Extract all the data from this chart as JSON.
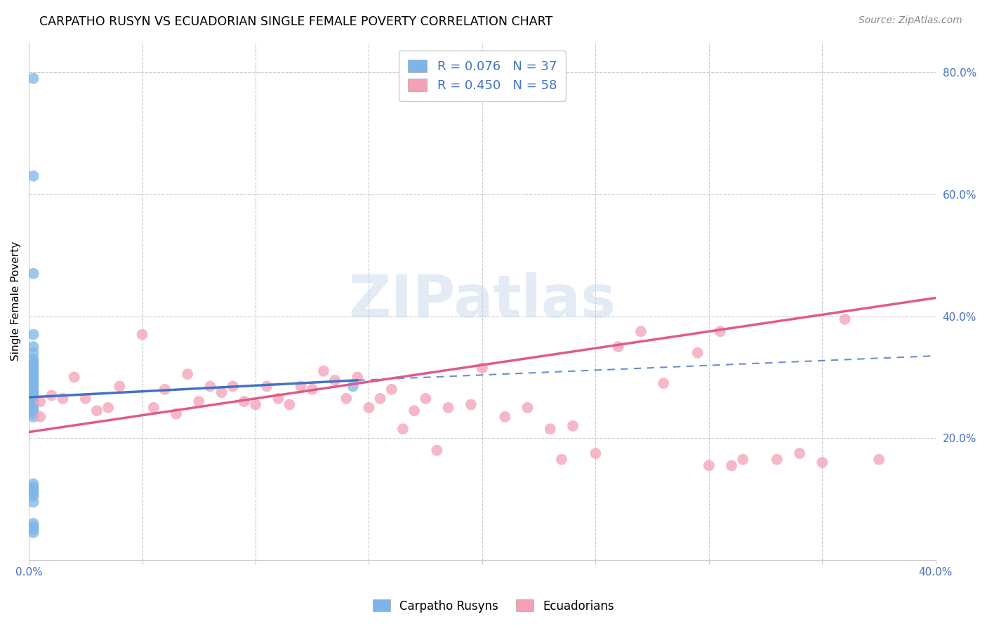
{
  "title": "CARPATHO RUSYN VS ECUADORIAN SINGLE FEMALE POVERTY CORRELATION CHART",
  "source": "Source: ZipAtlas.com",
  "ylabel": "Single Female Poverty",
  "legend_label1": "Carpatho Rusyns",
  "legend_label2": "Ecuadorians",
  "legend_text1": "R = 0.076   N = 37",
  "legend_text2": "R = 0.450   N = 58",
  "xlim": [
    0.0,
    0.4
  ],
  "ylim": [
    0.0,
    0.85
  ],
  "xtick_positions": [
    0.0,
    0.05,
    0.1,
    0.15,
    0.2,
    0.25,
    0.3,
    0.35,
    0.4
  ],
  "xtick_labels": [
    "0.0%",
    "",
    "",
    "",
    "",
    "",
    "",
    "",
    "40.0%"
  ],
  "ytick_positions": [
    0.0,
    0.2,
    0.4,
    0.6,
    0.8
  ],
  "ytick_labels": [
    "",
    "20.0%",
    "40.0%",
    "60.0%",
    "80.0%"
  ],
  "color_blue": "#7eb5e8",
  "color_pink": "#f4a0b5",
  "line_blue": "#4472c4",
  "line_pink": "#e05a8a",
  "tick_color": "#4472c4",
  "background": "#ffffff",
  "grid_color": "#cccccc",
  "blue_x": [
    0.002,
    0.002,
    0.002,
    0.002,
    0.002,
    0.002,
    0.002,
    0.002,
    0.002,
    0.002,
    0.002,
    0.002,
    0.002,
    0.002,
    0.002,
    0.002,
    0.002,
    0.002,
    0.002,
    0.002,
    0.002,
    0.002,
    0.002,
    0.002,
    0.002,
    0.002,
    0.002,
    0.002,
    0.002,
    0.002,
    0.002,
    0.002,
    0.002,
    0.002,
    0.002,
    0.002,
    0.143
  ],
  "blue_y": [
    0.79,
    0.63,
    0.47,
    0.37,
    0.35,
    0.34,
    0.33,
    0.325,
    0.32,
    0.315,
    0.31,
    0.305,
    0.3,
    0.295,
    0.29,
    0.285,
    0.28,
    0.275,
    0.27,
    0.265,
    0.26,
    0.255,
    0.25,
    0.245,
    0.24,
    0.235,
    0.125,
    0.12,
    0.115,
    0.11,
    0.105,
    0.095,
    0.06,
    0.055,
    0.05,
    0.045,
    0.285
  ],
  "pink_x": [
    0.005,
    0.01,
    0.02,
    0.03,
    0.04,
    0.055,
    0.065,
    0.075,
    0.085,
    0.095,
    0.1,
    0.105,
    0.115,
    0.12,
    0.13,
    0.14,
    0.145,
    0.155,
    0.16,
    0.17,
    0.175,
    0.185,
    0.195,
    0.2,
    0.21,
    0.22,
    0.23,
    0.24,
    0.25,
    0.26,
    0.27,
    0.28,
    0.295,
    0.305,
    0.315,
    0.33,
    0.34,
    0.35,
    0.36,
    0.375,
    0.005,
    0.015,
    0.025,
    0.035,
    0.05,
    0.06,
    0.07,
    0.08,
    0.09,
    0.11,
    0.125,
    0.135,
    0.15,
    0.165,
    0.18,
    0.235,
    0.3,
    0.31
  ],
  "pink_y": [
    0.26,
    0.27,
    0.3,
    0.245,
    0.285,
    0.25,
    0.24,
    0.26,
    0.275,
    0.26,
    0.255,
    0.285,
    0.255,
    0.285,
    0.31,
    0.265,
    0.3,
    0.265,
    0.28,
    0.245,
    0.265,
    0.25,
    0.255,
    0.315,
    0.235,
    0.25,
    0.215,
    0.22,
    0.175,
    0.35,
    0.375,
    0.29,
    0.34,
    0.375,
    0.165,
    0.165,
    0.175,
    0.16,
    0.395,
    0.165,
    0.235,
    0.265,
    0.265,
    0.25,
    0.37,
    0.28,
    0.305,
    0.285,
    0.285,
    0.265,
    0.28,
    0.295,
    0.25,
    0.215,
    0.18,
    0.165,
    0.155,
    0.155
  ],
  "blue_line_x0": 0.0,
  "blue_line_x_solid_end": 0.145,
  "blue_line_x1": 0.4,
  "blue_line_y0": 0.267,
  "blue_line_y_solid_end": 0.295,
  "blue_line_y1": 0.335,
  "pink_line_x0": 0.0,
  "pink_line_x1": 0.4,
  "pink_line_y0": 0.21,
  "pink_line_y1": 0.43
}
